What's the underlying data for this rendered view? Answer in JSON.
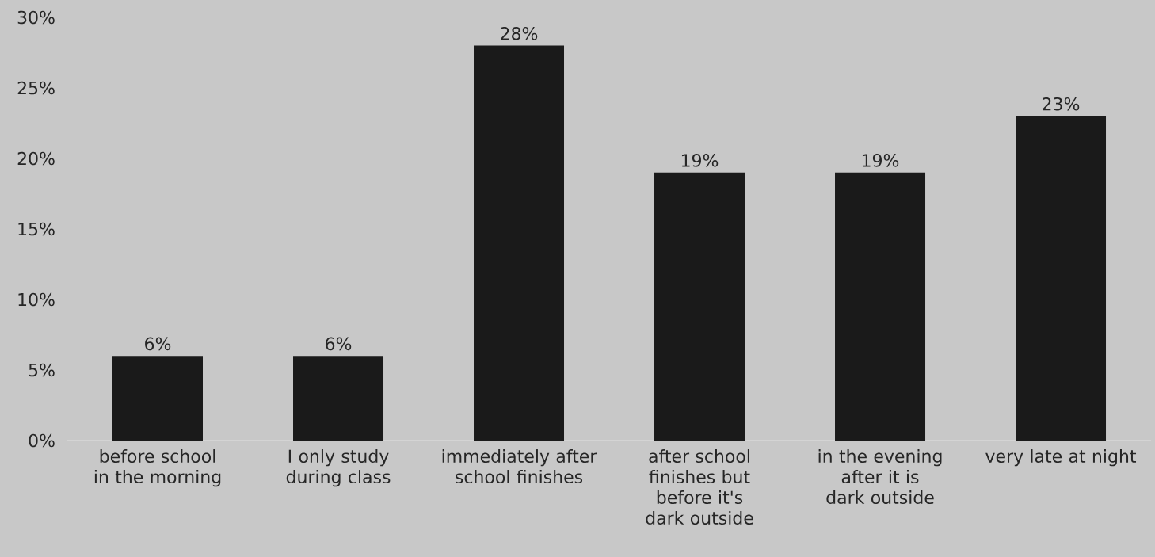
{
  "chart_data": {
    "type": "bar",
    "categories": [
      "before school in the morning",
      "I only study during class",
      "immediately after school finishes",
      "after school finishes but before it's dark outside",
      "in the evening after it is dark outside",
      "very late at night"
    ],
    "values": [
      6,
      6,
      28,
      19,
      19,
      23
    ],
    "value_labels": [
      "6%",
      "6%",
      "28%",
      "19%",
      "19%",
      "23%"
    ],
    "color": "#1a1a1a",
    "ylim": [
      0,
      30
    ],
    "yticks": [
      {
        "value": 0,
        "label": "0%"
      },
      {
        "value": 5,
        "label": "5%"
      },
      {
        "value": 10,
        "label": "10%"
      },
      {
        "value": 15,
        "label": "15%"
      },
      {
        "value": 20,
        "label": "20%"
      },
      {
        "value": 25,
        "label": "25%"
      },
      {
        "value": 30,
        "label": "30%"
      }
    ]
  }
}
